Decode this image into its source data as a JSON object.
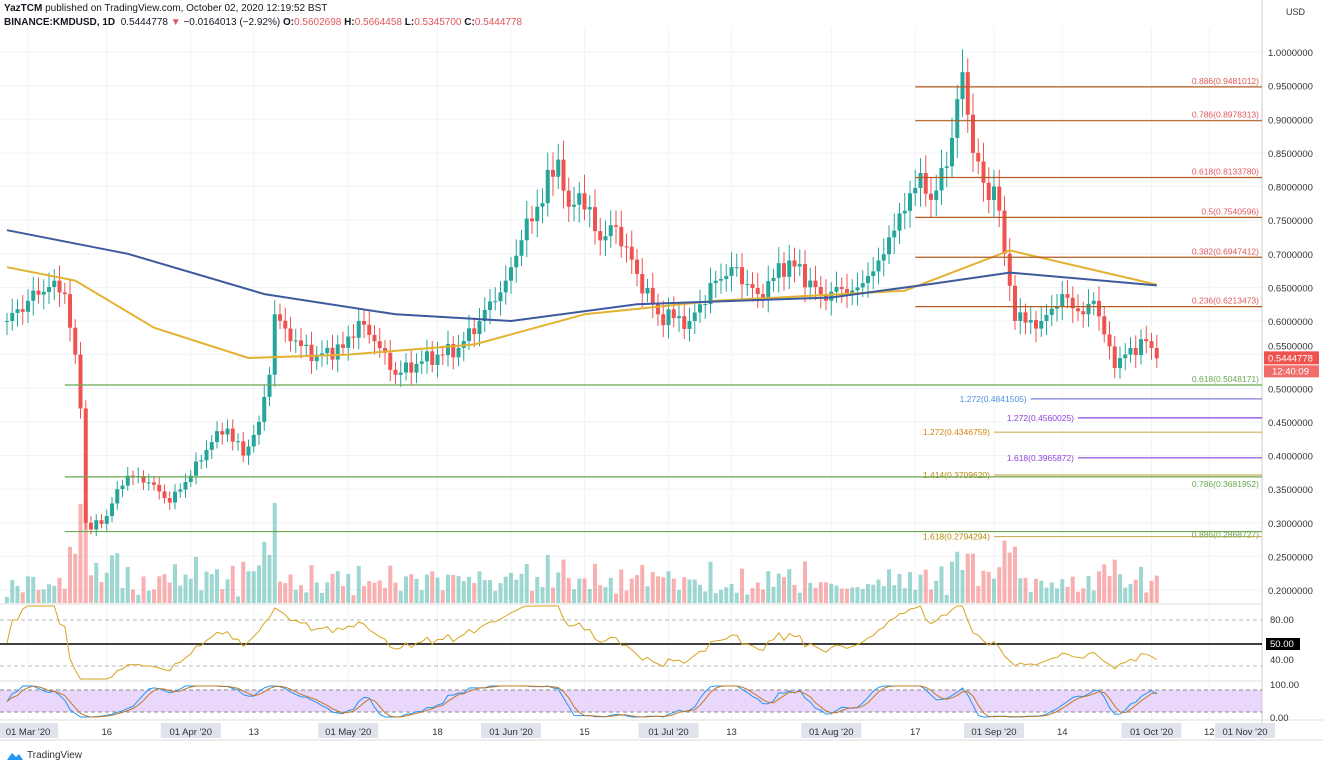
{
  "header": {
    "author": "YazTCM",
    "published": "published on TradingView.com, October 02, 2020 12:19:52 BST",
    "symbol": "BINANCE:KMDUSD, 1D",
    "last": "0.5444778",
    "change": "−0.0164013 (−2.92%)",
    "open_label": "O:",
    "open": "0.5602698",
    "high_label": "H:",
    "high": "0.5664458",
    "low_label": "L:",
    "low": "0.5345700",
    "close_label": "C:",
    "close": "0.5444778"
  },
  "footer": {
    "brand": "TradingView"
  },
  "colors": {
    "up": "#26a69a",
    "down": "#ef5350",
    "ma_long": "#3d5a9e",
    "ma_short": "#e3b231",
    "fib_brown": "#b35b1f",
    "fib_green": "#6aa84f",
    "rsi": "#d8a521",
    "stoch_band": "#e1c8fb"
  },
  "chart_data": {
    "type": "candlestick",
    "currency": "USD",
    "ylim": [
      0.18,
      1.02
    ],
    "y_ticks": [
      "1.0000000",
      "0.9500000",
      "0.9000000",
      "0.8500000",
      "0.8000000",
      "0.7500000",
      "0.7000000",
      "0.6500000",
      "0.6000000",
      "0.5500000",
      "0.5000000",
      "0.4500000",
      "0.4000000",
      "0.3500000",
      "0.3000000",
      "0.2500000",
      "0.2000000"
    ],
    "price_tag": "0.5444778",
    "countdown": "12:40:09",
    "x_ticks": [
      {
        "date": "2020-03-01",
        "label": "01 Mar '20",
        "major": true
      },
      {
        "date": "2020-03-16",
        "label": "16"
      },
      {
        "date": "2020-04-01",
        "label": "01 Apr '20",
        "major": true
      },
      {
        "date": "2020-04-13",
        "label": "13"
      },
      {
        "date": "2020-05-01",
        "label": "01 May '20",
        "major": true
      },
      {
        "date": "2020-05-18",
        "label": "18"
      },
      {
        "date": "2020-06-01",
        "label": "01 Jun '20",
        "major": true
      },
      {
        "date": "2020-06-15",
        "label": "15"
      },
      {
        "date": "2020-07-01",
        "label": "01 Jul '20",
        "major": true
      },
      {
        "date": "2020-07-13",
        "label": "13"
      },
      {
        "date": "2020-08-01",
        "label": "01 Aug '20",
        "major": true
      },
      {
        "date": "2020-08-17",
        "label": "17"
      },
      {
        "date": "2020-09-01",
        "label": "01 Sep '20",
        "major": true
      },
      {
        "date": "2020-09-14",
        "label": "14"
      },
      {
        "date": "2020-10-01",
        "label": "01 Oct '20",
        "major": true
      },
      {
        "date": "2020-10-12",
        "label": "12"
      },
      {
        "date": "2020-11-01",
        "label": "01 Nov '20",
        "major": true
      }
    ],
    "closes": [
      [
        "2020-02-26",
        0.6
      ],
      [
        "2020-03-01",
        0.63
      ],
      [
        "2020-03-06",
        0.66
      ],
      [
        "2020-03-08",
        0.64
      ],
      [
        "2020-03-10",
        0.55
      ],
      [
        "2020-03-11",
        0.47
      ],
      [
        "2020-03-12",
        0.3
      ],
      [
        "2020-03-13",
        0.29
      ],
      [
        "2020-03-16",
        0.31
      ],
      [
        "2020-03-18",
        0.35
      ],
      [
        "2020-03-20",
        0.37
      ],
      [
        "2020-03-24",
        0.36
      ],
      [
        "2020-03-28",
        0.33
      ],
      [
        "2020-04-01",
        0.37
      ],
      [
        "2020-04-05",
        0.42
      ],
      [
        "2020-04-08",
        0.44
      ],
      [
        "2020-04-11",
        0.4
      ],
      [
        "2020-04-14",
        0.45
      ],
      [
        "2020-04-16",
        0.52
      ],
      [
        "2020-04-17",
        0.61
      ],
      [
        "2020-04-20",
        0.57
      ],
      [
        "2020-04-25",
        0.55
      ],
      [
        "2020-04-30",
        0.56
      ],
      [
        "2020-05-03",
        0.6
      ],
      [
        "2020-05-06",
        0.57
      ],
      [
        "2020-05-10",
        0.52
      ],
      [
        "2020-05-15",
        0.54
      ],
      [
        "2020-05-22",
        0.56
      ],
      [
        "2020-05-26",
        0.6
      ],
      [
        "2020-05-31",
        0.66
      ],
      [
        "2020-06-03",
        0.72
      ],
      [
        "2020-06-06",
        0.77
      ],
      [
        "2020-06-10",
        0.84
      ],
      [
        "2020-06-12",
        0.77
      ],
      [
        "2020-06-14",
        0.79
      ],
      [
        "2020-06-18",
        0.72
      ],
      [
        "2020-06-21",
        0.74
      ],
      [
        "2020-06-25",
        0.67
      ],
      [
        "2020-06-29",
        0.61
      ],
      [
        "2020-07-05",
        0.6
      ],
      [
        "2020-07-10",
        0.66
      ],
      [
        "2020-07-13",
        0.68
      ],
      [
        "2020-07-18",
        0.64
      ],
      [
        "2020-07-24",
        0.69
      ],
      [
        "2020-07-30",
        0.64
      ],
      [
        "2020-08-06",
        0.65
      ],
      [
        "2020-08-10",
        0.69
      ],
      [
        "2020-08-14",
        0.76
      ],
      [
        "2020-08-18",
        0.82
      ],
      [
        "2020-08-20",
        0.78
      ],
      [
        "2020-08-23",
        0.83
      ],
      [
        "2020-08-25",
        0.93
      ],
      [
        "2020-08-26",
        0.97
      ],
      [
        "2020-08-28",
        0.85
      ],
      [
        "2020-08-31",
        0.78
      ],
      [
        "2020-09-01",
        0.8
      ],
      [
        "2020-09-03",
        0.7
      ],
      [
        "2020-09-05",
        0.6
      ],
      [
        "2020-09-10",
        0.6
      ],
      [
        "2020-09-14",
        0.64
      ],
      [
        "2020-09-18",
        0.61
      ],
      [
        "2020-09-20",
        0.63
      ],
      [
        "2020-09-22",
        0.58
      ],
      [
        "2020-09-24",
        0.53
      ],
      [
        "2020-09-27",
        0.56
      ],
      [
        "2020-09-30",
        0.57
      ],
      [
        "2020-10-01",
        0.56
      ],
      [
        "2020-10-02",
        0.5444778
      ]
    ],
    "ma_long": [
      [
        "2020-02-26",
        0.735
      ],
      [
        "2020-03-20",
        0.7
      ],
      [
        "2020-04-15",
        0.64
      ],
      [
        "2020-05-10",
        0.61
      ],
      [
        "2020-06-01",
        0.6
      ],
      [
        "2020-06-25",
        0.625
      ],
      [
        "2020-08-01",
        0.635
      ],
      [
        "2020-08-20",
        0.655
      ],
      [
        "2020-09-04",
        0.672
      ],
      [
        "2020-10-02",
        0.653
      ]
    ],
    "ma_short": [
      [
        "2020-02-26",
        0.68
      ],
      [
        "2020-03-10",
        0.66
      ],
      [
        "2020-03-25",
        0.59
      ],
      [
        "2020-04-12",
        0.545
      ],
      [
        "2020-05-01",
        0.55
      ],
      [
        "2020-05-25",
        0.565
      ],
      [
        "2020-06-15",
        0.61
      ],
      [
        "2020-07-10",
        0.63
      ],
      [
        "2020-08-15",
        0.645
      ],
      [
        "2020-09-04",
        0.705
      ],
      [
        "2020-10-02",
        0.654
      ]
    ],
    "fib_levels": [
      {
        "label": "0.886(0.9481012)",
        "value": 0.9481012,
        "color": "#b35b1f",
        "from": "2020-08-17",
        "text_color": "#e0575a"
      },
      {
        "label": "0.786(0.8978313)",
        "value": 0.8978313,
        "color": "#b35b1f",
        "from": "2020-08-17",
        "text_color": "#e0575a"
      },
      {
        "label": "0.618(0.8133780)",
        "value": 0.813378,
        "color": "#b35b1f",
        "from": "2020-08-17",
        "text_color": "#e0575a"
      },
      {
        "label": "0.5(0.7540596)",
        "value": 0.7540596,
        "color": "#b35b1f",
        "from": "2020-08-17",
        "text_color": "#e0575a"
      },
      {
        "label": "0.382(0.6947412)",
        "value": 0.6947412,
        "color": "#b35b1f",
        "from": "2020-08-17",
        "text_color": "#e0575a"
      },
      {
        "label": "0.236(0.6213473)",
        "value": 0.6213473,
        "color": "#b35b1f",
        "from": "2020-08-17",
        "text_color": "#e0575a"
      },
      {
        "label": "0.618(0.5048171)",
        "value": 0.5048171,
        "color": "#6aa84f",
        "from": "2020-03-08",
        "text_color": "#6aa84f"
      },
      {
        "label": "1.272(0.4841505)",
        "value": 0.4841505,
        "color": "#7f7fd5",
        "from": "2020-09-08",
        "text_color": "#4a90e2",
        "left_label": true
      },
      {
        "label": "1.272(0.4560025)",
        "value": 0.4560025,
        "color": "#8e44d8",
        "from": "2020-09-17",
        "text_color": "#8e44d8",
        "left_label": true
      },
      {
        "label": "1.272(0.4346759)",
        "value": 0.4346759,
        "color": "#cdb05a",
        "from": "2020-09-01",
        "text_color": "#d4860b",
        "left_label": true
      },
      {
        "label": "1.618(0.3965872)",
        "value": 0.3965872,
        "color": "#8e44d8",
        "from": "2020-09-17",
        "text_color": "#8e44d8",
        "left_label": true
      },
      {
        "label": "1.414(0.3709620)",
        "value": 0.370962,
        "color": "#cdb05a",
        "from": "2020-09-01",
        "text_color": "#b8860b",
        "left_label": true
      },
      {
        "label": "0.786(0.3681952)",
        "value": 0.3681952,
        "color": "#6aa84f",
        "from": "2020-03-08",
        "text_color": "#6aa84f"
      },
      {
        "label": "1.618(0.2794294)",
        "value": 0.2794294,
        "color": "#cdb05a",
        "from": "2020-09-01",
        "text_color": "#b8860b",
        "left_label": true
      },
      {
        "label": "0.886(0.2868727)",
        "value": 0.2868727,
        "color": "#6aa84f",
        "from": "2020-03-08",
        "text_color": "#6aa84f"
      }
    ],
    "rsi": {
      "ticks": [
        "80.00",
        "40.00"
      ],
      "tag": "50.00"
    },
    "stoch": {
      "ticks": [
        "100.00",
        "0.00"
      ]
    }
  }
}
